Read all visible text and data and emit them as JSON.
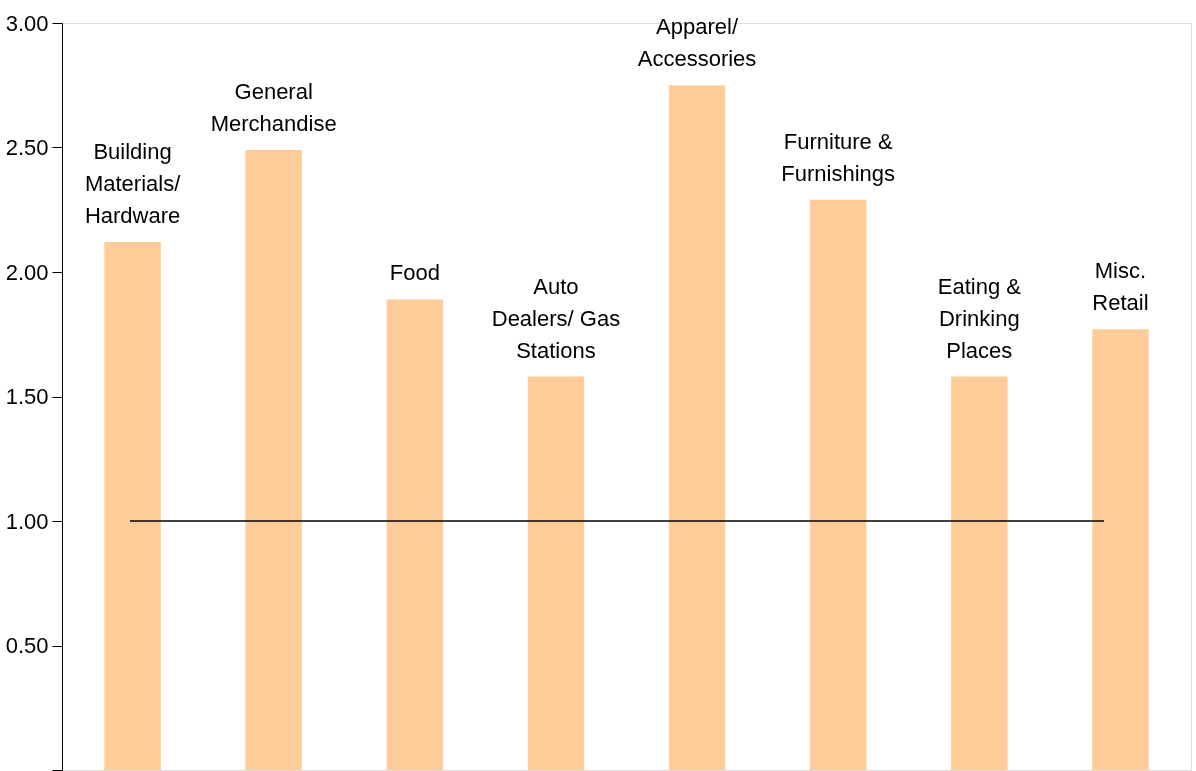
{
  "chart_data": {
    "type": "bar",
    "categories": [
      "Building\nMaterials/\nHardware",
      "General\nMerchandise",
      "Food",
      "Auto\nDealers/ Gas\nStations",
      "Apparel/\nAccessories",
      "Furniture &\nFurnishings",
      "Eating &\nDrinking\nPlaces",
      "Misc.\nRetail"
    ],
    "values": [
      2.12,
      2.49,
      1.89,
      1.58,
      2.75,
      2.29,
      1.58,
      1.77
    ],
    "color": "#ffcc99",
    "ylim": [
      0,
      3
    ],
    "yticks": [
      {
        "value": 0,
        "label": null
      },
      {
        "value": 0.5,
        "label": "0.50"
      },
      {
        "value": 1,
        "label": "1.00"
      },
      {
        "value": 1.5,
        "label": "1.50"
      },
      {
        "value": 2,
        "label": "2.00"
      },
      {
        "value": 2.5,
        "label": "2.50"
      },
      {
        "value": 3,
        "label": "3.00"
      }
    ],
    "ref_lines": [
      {
        "axis": "y",
        "value": 1,
        "color": "#000000"
      }
    ],
    "tick_labels": "y",
    "grid": false
  }
}
